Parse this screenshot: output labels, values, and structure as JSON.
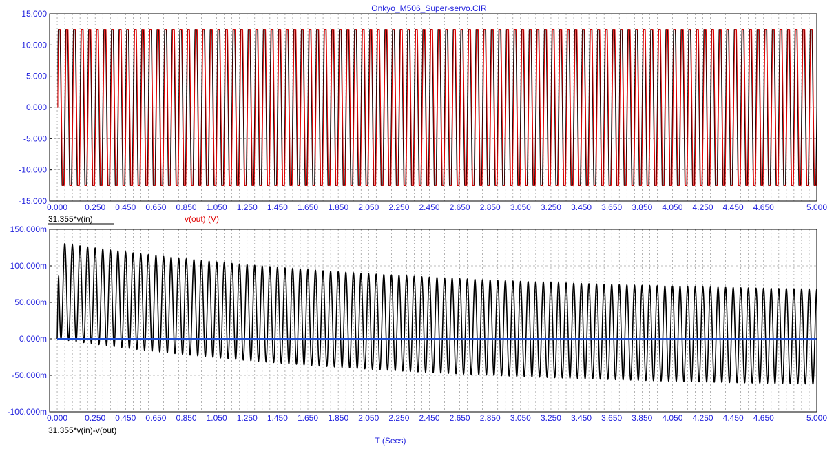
{
  "window_title": "Onkyo_M506_Super-servo.CIR",
  "x_axis_label": "T (Secs)",
  "colors": {
    "axis_text": "#2222dd",
    "grid": "#7f7f7f",
    "frame": "#000000",
    "trace_black": "#000000",
    "trace_red": "#e00000",
    "trace_blue": "#1f4fd6"
  },
  "chart_data": [
    {
      "type": "line",
      "title": "Onkyo_M506_Super-servo.CIR",
      "xlim": [
        -0.05,
        5.0
      ],
      "ylim": [
        -15,
        15
      ],
      "x_ticks": [
        0.0,
        0.25,
        0.45,
        0.65,
        0.85,
        1.05,
        1.25,
        1.45,
        1.65,
        1.85,
        2.05,
        2.25,
        2.45,
        2.65,
        2.85,
        3.05,
        3.25,
        3.45,
        3.65,
        3.85,
        4.05,
        4.25,
        4.45,
        4.65,
        5.0
      ],
      "x_tick_labels": [
        "0.000",
        "0.250",
        "0.450",
        "0.650",
        "0.850",
        "1.050",
        "1.250",
        "1.450",
        "1.650",
        "1.850",
        "2.050",
        "2.250",
        "2.450",
        "2.650",
        "2.850",
        "3.050",
        "3.250",
        "3.450",
        "3.650",
        "3.850",
        "4.050",
        "4.250",
        "4.450",
        "4.650",
        "5.000"
      ],
      "y_ticks": [
        15,
        10,
        5,
        0,
        -5,
        -10,
        -15
      ],
      "y_tick_labels": [
        "15.000",
        "10.000",
        "5.000",
        "0.000",
        "-5.000",
        "-10.000",
        "-15.000"
      ],
      "grid": true,
      "series": [
        {
          "name": "31.355*v(in)",
          "color": "#000000",
          "amplitude": 12.5,
          "cycles": 100,
          "phase_deg": 0
        },
        {
          "name": "v(out) (V)",
          "color": "#e00000",
          "amplitude": 12.5,
          "cycles": 100,
          "phase_deg": -25
        }
      ]
    },
    {
      "type": "line",
      "xlim": [
        -0.05,
        5.0
      ],
      "ylim": [
        -100,
        150
      ],
      "x_ticks": [
        0.0,
        0.25,
        0.45,
        0.65,
        0.85,
        1.05,
        1.25,
        1.45,
        1.65,
        1.85,
        2.05,
        2.25,
        2.45,
        2.65,
        2.85,
        3.05,
        3.25,
        3.45,
        3.65,
        3.85,
        4.05,
        4.25,
        4.45,
        4.65,
        5.0
      ],
      "x_tick_labels": [
        "0.000",
        "0.250",
        "0.450",
        "0.650",
        "0.850",
        "1.050",
        "1.250",
        "1.450",
        "1.650",
        "1.850",
        "2.050",
        "2.250",
        "2.450",
        "2.650",
        "2.850",
        "3.050",
        "3.250",
        "3.450",
        "3.650",
        "3.850",
        "4.050",
        "4.250",
        "4.450",
        "4.650",
        "5.000"
      ],
      "y_ticks": [
        150,
        100,
        50,
        0,
        -50,
        -100
      ],
      "y_tick_labels": [
        "150.000m",
        "100.000m",
        "50.000m",
        "0.000m",
        "-50.000m",
        "-100.000m"
      ],
      "grid": true,
      "series": [
        {
          "name": "31.355*v(in)-v(out)",
          "color": "#000000",
          "cycles": 100,
          "envelope_start": {
            "max": 132,
            "min": 0
          },
          "envelope_end": {
            "max": 68,
            "min": -62
          }
        },
        {
          "name": "",
          "color": "#1f4fd6",
          "constant": 0
        }
      ]
    }
  ]
}
